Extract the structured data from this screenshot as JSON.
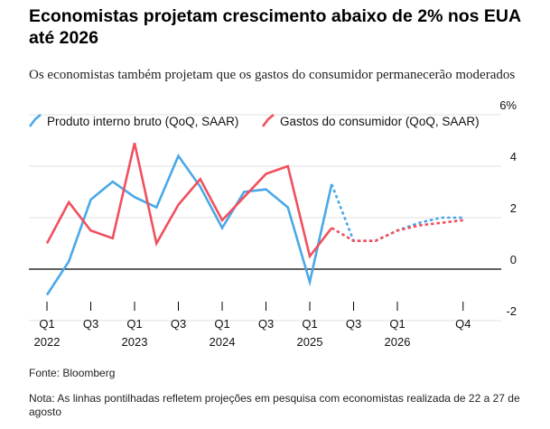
{
  "header": {
    "title": "Economistas projetam crescimento abaixo de 2% nos EUA até 2026",
    "subtitle": "Os economistas também projetam que os gastos do consumidor permanecerão moderados"
  },
  "footer": {
    "source": "Fonte: Bloomberg",
    "note": "Nota: As linhas pontilhadas refletem projeções em pesquisa com economistas realizada de 22 a 27 de agosto"
  },
  "colors": {
    "gdp": "#4aa8e8",
    "consumer": "#f0505e",
    "zero_line": "#000000",
    "grid": "#e0e0e0"
  },
  "chart_data": {
    "type": "line",
    "x": [
      "2022-Q1",
      "2022-Q2",
      "2022-Q3",
      "2022-Q4",
      "2023-Q1",
      "2023-Q2",
      "2023-Q3",
      "2023-Q4",
      "2024-Q1",
      "2024-Q2",
      "2024-Q3",
      "2024-Q4",
      "2025-Q1",
      "2025-Q2",
      "2025-Q3",
      "2025-Q4",
      "2026-Q1",
      "2026-Q2",
      "2026-Q3",
      "2026-Q4"
    ],
    "x_tick_labels": [
      {
        "x": "2022-Q1",
        "quarter": "Q1",
        "year": "2022"
      },
      {
        "x": "2022-Q3",
        "quarter": "Q3",
        "year": ""
      },
      {
        "x": "2023-Q1",
        "quarter": "Q1",
        "year": "2023"
      },
      {
        "x": "2023-Q3",
        "quarter": "Q3",
        "year": ""
      },
      {
        "x": "2024-Q1",
        "quarter": "Q1",
        "year": "2024"
      },
      {
        "x": "2024-Q3",
        "quarter": "Q3",
        "year": ""
      },
      {
        "x": "2025-Q1",
        "quarter": "Q1",
        "year": "2025"
      },
      {
        "x": "2025-Q3",
        "quarter": "Q3",
        "year": ""
      },
      {
        "x": "2026-Q1",
        "quarter": "Q1",
        "year": "2026"
      },
      {
        "x": "2026-Q4",
        "quarter": "Q4",
        "year": ""
      }
    ],
    "y_ticks": [
      -2,
      0,
      2,
      4,
      6
    ],
    "y_tick_labels": [
      "-2",
      "0",
      "2",
      "4",
      "6%"
    ],
    "ylim": [
      -2.5,
      6
    ],
    "grid": "horizontal",
    "legend_position": "top-left",
    "series": [
      {
        "name": "Produto interno bruto (QoQ, SAAR)",
        "color": "#4aa8e8",
        "actual": [
          -1.0,
          0.3,
          2.7,
          3.4,
          2.8,
          2.4,
          4.4,
          3.2,
          1.6,
          3.0,
          3.1,
          2.4,
          -0.5,
          3.3
        ],
        "forecast": [
          3.3,
          1.1,
          1.1,
          1.5,
          1.8,
          2.0,
          2.0
        ]
      },
      {
        "name": "Gastos do consumidor (QoQ, SAAR)",
        "color": "#f0505e",
        "actual": [
          1.0,
          2.6,
          1.5,
          1.2,
          4.9,
          1.0,
          2.5,
          3.5,
          1.9,
          2.8,
          3.7,
          4.0,
          0.5,
          1.6
        ],
        "forecast": [
          1.6,
          1.1,
          1.1,
          1.5,
          1.7,
          1.8,
          1.9
        ]
      }
    ]
  }
}
